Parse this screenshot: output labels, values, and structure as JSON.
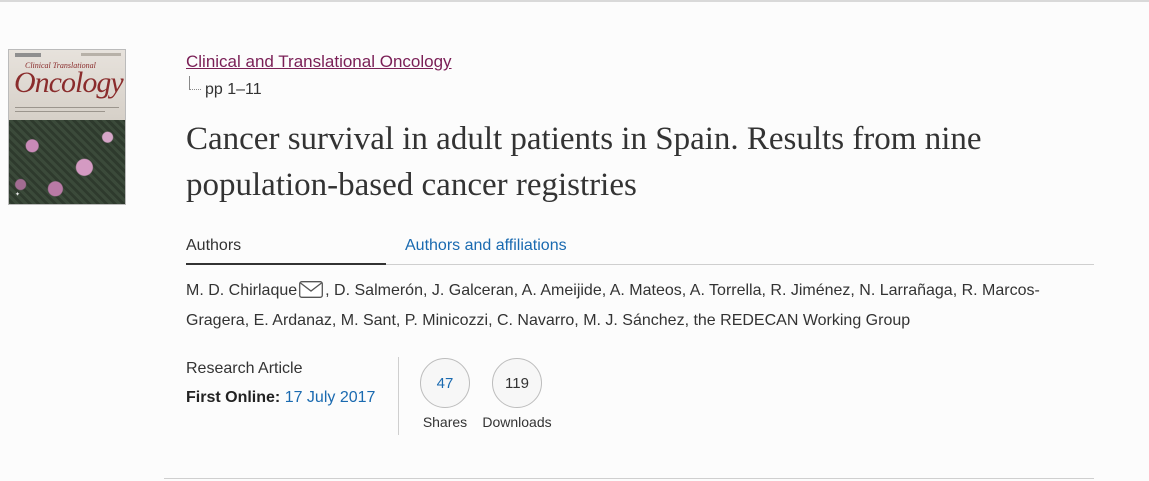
{
  "journal": {
    "name": "Clinical and Translational Oncology",
    "pages": "pp 1–11"
  },
  "cover": {
    "title": "Oncology",
    "subtitle": "Clinical  Translational"
  },
  "article": {
    "title": "Cancer survival in adult patients in Spain. Results from nine population-based cancer registries",
    "type": "Research Article",
    "first_online_label": "First Online:",
    "first_online_date": "17 July 2017"
  },
  "tabs": [
    {
      "label": "Authors",
      "active": true
    },
    {
      "label": "Authors and affiliations",
      "active": false
    }
  ],
  "authors": {
    "first": "M. D. Chirlaque",
    "rest": ", D. Salmerón, J. Galceran, A. Ameijide, A. Mateos, A. Torrella, R. Jiménez, N. Larrañaga, R. Marcos-Gragera, E. Ardanaz, M. Sant, P. Minicozzi, C. Navarro, M. J. Sánchez, the REDECAN Working Group",
    "contact_icon": "mail-icon"
  },
  "metrics": {
    "shares": {
      "value": "47",
      "label": "Shares"
    },
    "downloads": {
      "value": "119",
      "label": "Downloads"
    }
  },
  "colors": {
    "link": "#1a6ab0",
    "journal_link": "#7a1f56",
    "text": "#333333"
  }
}
